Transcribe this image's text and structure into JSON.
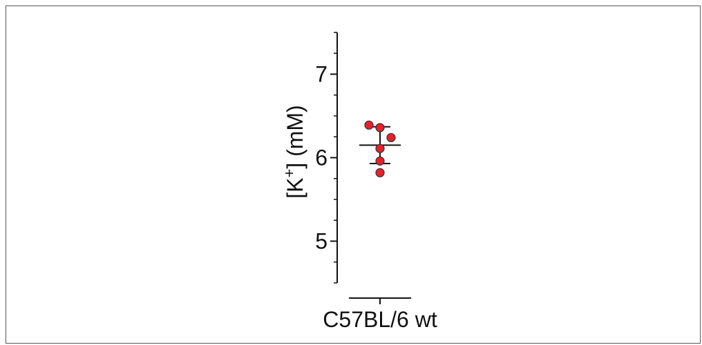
{
  "chart_data": {
    "type": "scatter",
    "title": "",
    "xlabel": "",
    "ylabel_prefix": "[K",
    "ylabel_sup": "+",
    "ylabel_suffix": "] (mM)",
    "categories": [
      "C57BL/6 wt"
    ],
    "ylim": [
      4.5,
      7.5
    ],
    "yticks": [
      5,
      6,
      7
    ],
    "ytick_labels": [
      "5",
      "6",
      "7"
    ],
    "minor_step": 0.25,
    "grid": false,
    "points": [
      6.39,
      6.36,
      6.24,
      6.11,
      5.96,
      5.82
    ],
    "jitter": [
      -0.16,
      0.0,
      0.16,
      0.0,
      0.0,
      0.0
    ],
    "mean": 6.15,
    "sd_upper": 6.37,
    "sd_lower": 5.93,
    "point_color": "#e8202a",
    "point_edge_color": "#333333",
    "line_color": "#111111"
  }
}
